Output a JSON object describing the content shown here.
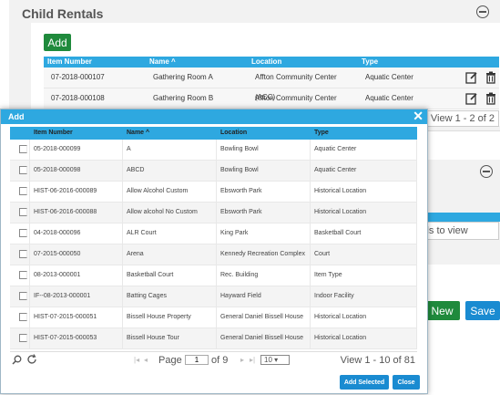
{
  "background": {
    "panel_title": "Child Rentals",
    "add_label": "Add",
    "columns": [
      "Item Number",
      "Name",
      "Location",
      "Type"
    ],
    "rows": [
      [
        "07-2018-000107",
        "Gathering Room A",
        "Affton Community Center (ACC)",
        "Aquatic Center"
      ],
      [
        "07-2018-000108",
        "Gathering Room B",
        "Affton Community Center (ACC)",
        "Aquatic Center"
      ]
    ],
    "view_info": "View 1 - 2 of 2",
    "panel2_message": "ords to view",
    "new_label": "New",
    "save_label": "Save"
  },
  "modal": {
    "title": "Add",
    "columns": [
      "",
      "Item Number",
      "Name",
      "Location",
      "Type"
    ],
    "rows": [
      [
        "05-2018-000099",
        "A",
        "Bowling Bowl",
        "Aquatic Center"
      ],
      [
        "05-2018-000098",
        "ABCD",
        "Bowling Bowl",
        "Aquatic Center"
      ],
      [
        "HIST-06-2016-000089",
        "Allow Alcohol Custom",
        "Ebsworth Park",
        "Historical Location"
      ],
      [
        "HIST-06-2016-000088",
        "Allow alcohol No Custom",
        "Ebsworth Park",
        "Historical Location"
      ],
      [
        "04-2018-000096",
        "ALR Court",
        "King Park",
        "Basketball Court"
      ],
      [
        "07-2015-000050",
        "Arena",
        "Kennedy Recreation Complex",
        "Court"
      ],
      [
        "08-2013-000001",
        "Basketball Court",
        "Rec. Building",
        "Item Type"
      ],
      [
        "IF--08-2013-000001",
        "Batting Cages",
        "Hayward Field",
        "Indoor Facility"
      ],
      [
        "HIST-07-2015-000051",
        "Bissell House Property",
        "General Daniel Bissell House",
        "Historical Location"
      ],
      [
        "HIST-07-2015-000053",
        "Bissell House Tour",
        "General Daniel Bissell House",
        "Historical Location"
      ]
    ],
    "pager": {
      "page_label": "Page",
      "page_value": "1",
      "of_label": "of 9",
      "page_size": "10",
      "view_info": "View 1 - 10 of 81"
    },
    "add_selected_label": "Add Selected",
    "close_label": "Close"
  },
  "icons": {
    "sort": "sort-asc-icon",
    "edit": "edit-icon",
    "delete": "trash-icon",
    "search": "search-icon",
    "refresh": "refresh-icon"
  },
  "colors": {
    "accent_blue": "#2ea8e0",
    "button_blue": "#1a8bd1",
    "button_green": "#1f8a3c"
  }
}
